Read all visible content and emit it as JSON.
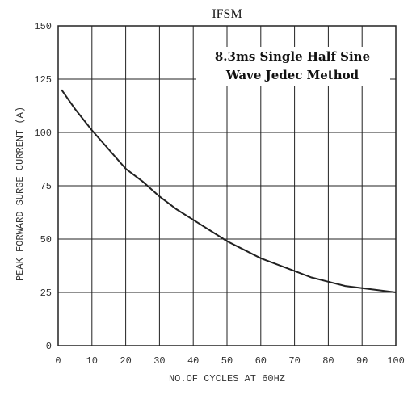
{
  "chart_data": {
    "type": "line",
    "title": "IFSM",
    "xlabel": "NO.OF CYCLES AT 60HZ",
    "ylabel": "PEAK FORWARD SURGE CURRENT (A)",
    "annotation": [
      "8.3ms Single Half Sine",
      "Wave Jedec Method"
    ],
    "xlim": [
      0,
      100
    ],
    "ylim": [
      0,
      150
    ],
    "x_ticks": [
      "0",
      "10",
      "20",
      "30",
      "40",
      "50",
      "60",
      "70",
      "80",
      "90",
      "100"
    ],
    "y_ticks": [
      "0",
      "25",
      "50",
      "75",
      "100",
      "125",
      "150"
    ],
    "grid": true,
    "series": [
      {
        "x": [
          1,
          5,
          10,
          15,
          20,
          25,
          30,
          35,
          40,
          45,
          50,
          55,
          60,
          65,
          70,
          75,
          80,
          85,
          90,
          95,
          100
        ],
        "values": [
          120,
          111,
          101,
          92,
          83,
          77,
          70,
          64,
          59,
          54,
          49,
          45,
          41,
          38,
          35,
          32,
          30,
          28,
          27,
          26,
          25
        ]
      }
    ]
  }
}
